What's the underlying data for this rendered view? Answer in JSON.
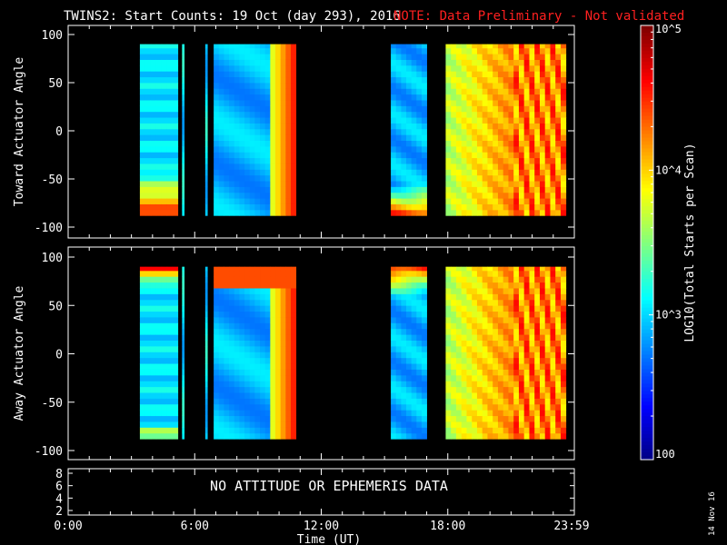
{
  "title": {
    "main": "TWINS2: Start Counts: 19 Oct (day 293), 2016",
    "note": "NOTE: Data Preliminary - Not validated"
  },
  "panels": [
    {
      "ylabel": "Toward Actuator Angle",
      "yticks": [
        "100",
        "50",
        "0",
        "-50",
        "-100"
      ]
    },
    {
      "ylabel": "Away Actuator Angle",
      "yticks": [
        "100",
        "50",
        "0",
        "-50",
        "-100"
      ]
    }
  ],
  "bottom_panel": {
    "yticks": [
      "8",
      "6",
      "4",
      "2"
    ],
    "message": "NO ATTITUDE OR EPHEMERIS DATA"
  },
  "xaxis": {
    "ticks": [
      "0:00",
      "6:00",
      "12:00",
      "18:00",
      "23:59"
    ],
    "label": "Time (UT)"
  },
  "colorbar": {
    "label": "LOG10(Total Starts per Scan)",
    "ticks": [
      "10^5",
      "10^4",
      "10^3",
      "100"
    ]
  },
  "date_stamp": "14 Nov 16",
  "chart_data": {
    "type": "heatmap",
    "title": "TWINS2: Start Counts: 19 Oct (day 293), 2016",
    "x_unit": "hours UT",
    "xlim": [
      0,
      24
    ],
    "ylim": [
      -100,
      100
    ],
    "color_scale": "log",
    "color_range": [
      100,
      100000
    ],
    "data_intervals_hours": [
      [
        3.4,
        5.2
      ],
      [
        5.4,
        5.5
      ],
      [
        6.5,
        6.6
      ],
      [
        6.9,
        10.8
      ],
      [
        15.3,
        17.0
      ],
      [
        17.9,
        23.6
      ]
    ],
    "angle_range": [
      -88,
      90
    ]
  }
}
